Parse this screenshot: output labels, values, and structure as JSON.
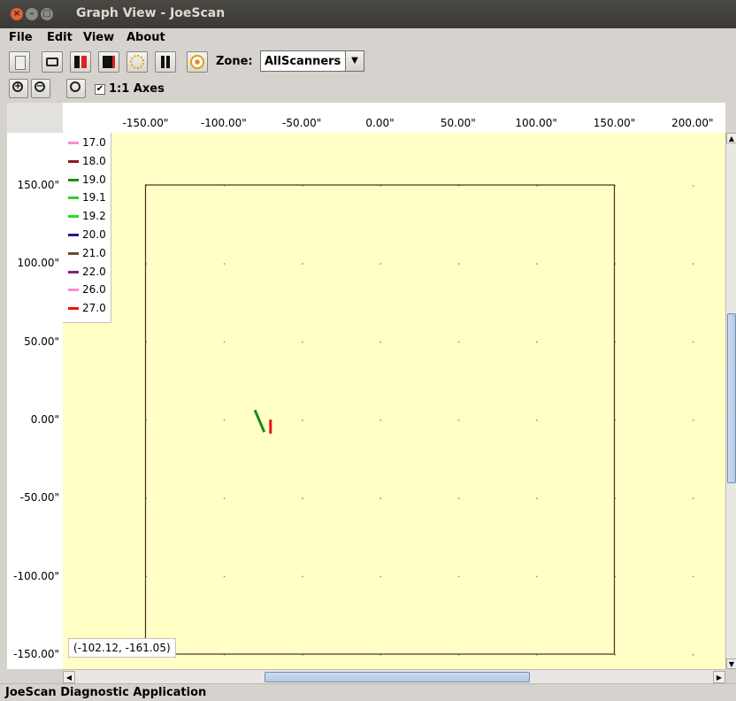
{
  "window": {
    "title": "Graph View - JoeScan"
  },
  "menu": [
    "File",
    "Edit",
    "View",
    "About"
  ],
  "toolbar": {
    "buttons": [
      "log-icon",
      "camera-icon",
      "scan-red-icon",
      "scan-black-icon",
      "target-icon",
      "pause-icon",
      "sensor-icon"
    ],
    "zone_label": "Zone:",
    "zone_value": "AllScanners"
  },
  "zoom": {
    "buttons": [
      "zoom-in-icon",
      "zoom-out-icon",
      "zoom-reset-icon"
    ],
    "axes_checkbox_label": "1:1 Axes",
    "axes_checked": true
  },
  "chart_data": {
    "type": "line",
    "x_ticks": [
      "-150.00\"",
      "-100.00\"",
      "-50.00\"",
      "0.00\"",
      "50.00\"",
      "100.00\"",
      "150.00\"",
      "200.00\""
    ],
    "y_ticks": [
      "150.00\"",
      "100.00\"",
      "50.00\"",
      "0.00\"",
      "-50.00\"",
      "-100.00\"",
      "-150.00\""
    ],
    "xlim": [
      -200,
      210
    ],
    "ylim": [
      -165,
      165
    ],
    "grid": "dots",
    "boundary": {
      "x": [
        -150,
        150
      ],
      "y": [
        -150,
        150
      ]
    },
    "legend_position": "top-left",
    "series": [
      {
        "name": "17.0",
        "color": "#ff88d8"
      },
      {
        "name": "18.0",
        "color": "#8b1a1a"
      },
      {
        "name": "19.0",
        "color": "#1e8a1e"
      },
      {
        "name": "19.1",
        "color": "#33cc33"
      },
      {
        "name": "19.2",
        "color": "#22dd22"
      },
      {
        "name": "20.0",
        "color": "#1c1c8c"
      },
      {
        "name": "21.0",
        "color": "#6b4a2a"
      },
      {
        "name": "22.0",
        "color": "#8b1a8b"
      },
      {
        "name": "26.0",
        "color": "#ff88d8"
      },
      {
        "name": "27.0",
        "color": "#ee1111"
      }
    ],
    "marks": [
      {
        "series": "19.0",
        "x": [
          -80,
          -74
        ],
        "y": [
          6,
          -8
        ],
        "color": "#1e8a1e"
      },
      {
        "series": "27.0",
        "x": [
          -70,
          -70
        ],
        "y": [
          0,
          -9
        ],
        "color": "#ee1111"
      }
    ]
  },
  "cursor_coords": "(-102.12, -161.05)",
  "status": "JoeScan Diagnostic Application"
}
